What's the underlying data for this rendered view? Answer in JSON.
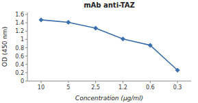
{
  "chart_data": {
    "type": "line",
    "title": "mAb anti-TAZ",
    "x_label": "Concentration (μg/ml)",
    "y_label": "OD (450 nm)",
    "categories": [
      "10",
      "5",
      "2.5",
      "1.2",
      "0.6",
      "0.3"
    ],
    "values": [
      1.47,
      1.41,
      1.27,
      1.01,
      0.86,
      0.26
    ],
    "color": "#3A6FAF",
    "marker": "diamond",
    "ylim": [
      0,
      1.65
    ],
    "yticks": [
      0,
      0.2,
      0.4,
      0.6,
      0.8,
      1,
      1.2,
      1.4,
      1.6
    ],
    "grid": false
  }
}
